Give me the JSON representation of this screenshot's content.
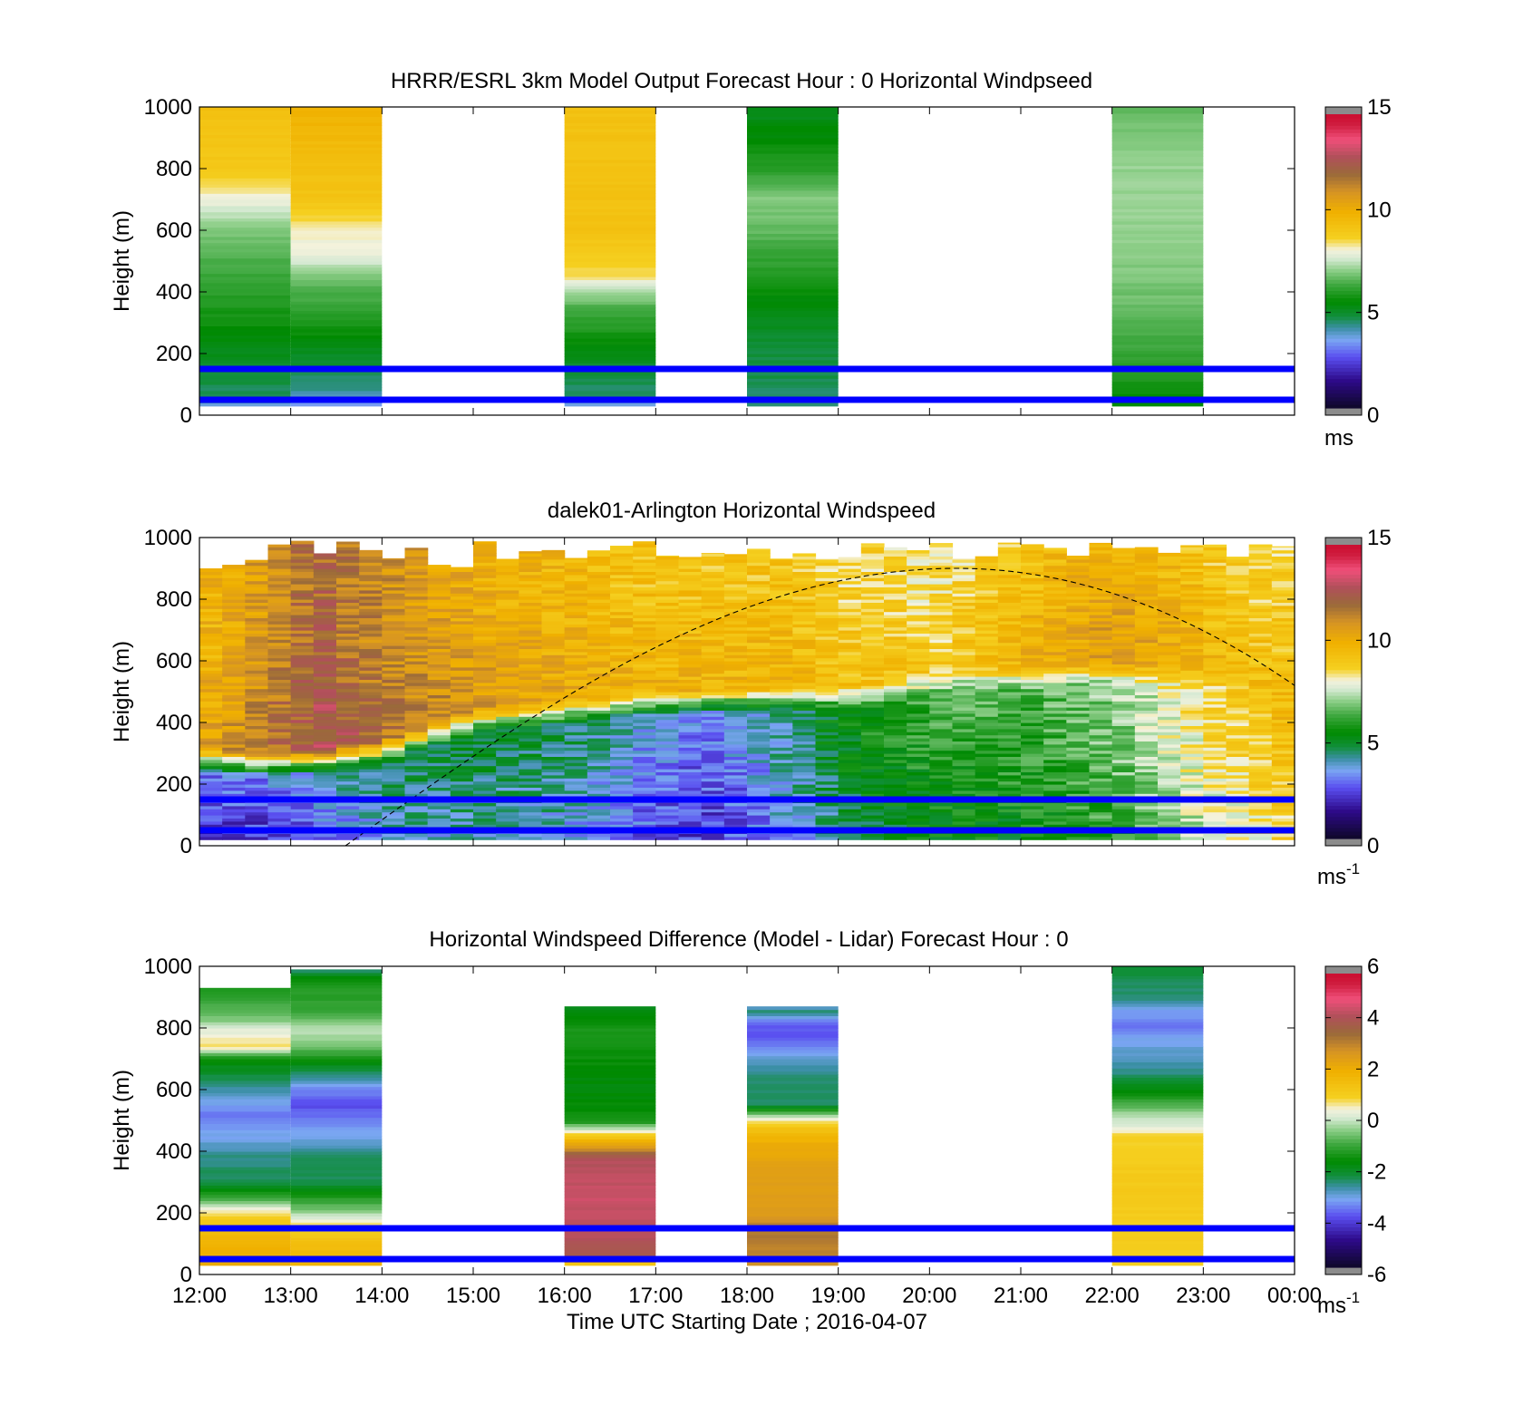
{
  "chart_data": [
    {
      "type": "heatmap",
      "title": "HRRR/ESRL 3km Model Output   Forecast Hour : 0 Horizontal Windpseed",
      "ylabel": "Height (m)",
      "ylim": [
        0,
        1000
      ],
      "yticks": [
        "0",
        "200",
        "400",
        "600",
        "800",
        "1000"
      ],
      "x_hour_range": [
        12,
        24
      ],
      "reference_lines_m": [
        50,
        150
      ],
      "reference_line_color": "#0000ff",
      "colorbar": {
        "min": 0,
        "max": 15,
        "ticks": [
          "0",
          "5",
          "10",
          "15"
        ],
        "unit": "ms"
      },
      "columns": [
        {
          "start_hour": 12,
          "stops": [
            [
              30,
              3.6
            ],
            [
              60,
              4.4
            ],
            [
              150,
              4.8
            ],
            [
              300,
              5.6
            ],
            [
              450,
              6.2
            ],
            [
              600,
              6.9
            ],
            [
              700,
              8.0
            ],
            [
              800,
              9.0
            ],
            [
              1000,
              9.4
            ]
          ]
        },
        {
          "start_hour": 13,
          "stops": [
            [
              30,
              3.4
            ],
            [
              90,
              4.2
            ],
            [
              150,
              4.6
            ],
            [
              250,
              5.4
            ],
            [
              350,
              6.1
            ],
            [
              450,
              6.8
            ],
            [
              490,
              7.5
            ],
            [
              500,
              7.8
            ],
            [
              600,
              8.2
            ],
            [
              700,
              9.2
            ],
            [
              850,
              9.5
            ],
            [
              1000,
              10.0
            ]
          ]
        },
        {
          "start_hour": 16,
          "stops": [
            [
              30,
              3.3
            ],
            [
              60,
              4.3
            ],
            [
              150,
              4.7
            ],
            [
              250,
              5.6
            ],
            [
              350,
              6.4
            ],
            [
              400,
              7.3
            ],
            [
              420,
              7.6
            ],
            [
              450,
              8.5
            ],
            [
              600,
              9.3
            ],
            [
              1000,
              9.3
            ]
          ]
        },
        {
          "start_hour": 18,
          "stops": [
            [
              30,
              4.3
            ],
            [
              150,
              4.6
            ],
            [
              250,
              4.8
            ],
            [
              350,
              5.2
            ],
            [
              450,
              5.8
            ],
            [
              600,
              6.6
            ],
            [
              700,
              7.0
            ],
            [
              800,
              6.0
            ],
            [
              900,
              5.4
            ],
            [
              1000,
              5.0
            ]
          ]
        },
        {
          "start_hour": 22,
          "stops": [
            [
              30,
              5.2
            ],
            [
              150,
              6.0
            ],
            [
              300,
              6.5
            ],
            [
              400,
              6.8
            ],
            [
              500,
              7.0
            ],
            [
              700,
              7.2
            ],
            [
              900,
              7.0
            ],
            [
              1000,
              6.5
            ]
          ]
        }
      ]
    },
    {
      "type": "heatmap",
      "title": "dalek01-Arlington  Horizontal Windspeed",
      "ylabel": "Height (m)",
      "ylim": [
        0,
        1000
      ],
      "yticks": [
        "0",
        "200",
        "400",
        "600",
        "800",
        "1000"
      ],
      "x_hour_range": [
        12,
        24
      ],
      "reference_lines_m": [
        50,
        150
      ],
      "reference_line_color": "#0000ff",
      "colorbar": {
        "min": 0,
        "max": 15,
        "ticks": [
          "0",
          "5",
          "10",
          "15"
        ],
        "unit": "ms",
        "unit_exponent": "-1"
      },
      "time_step_hours": 0.25,
      "low_layer_hours": [
        12,
        12.6,
        13.3,
        14,
        15,
        16,
        17,
        17.5,
        18,
        18.5,
        19,
        19.5,
        20,
        20.5,
        21,
        21.5,
        22,
        22.5,
        23,
        23.5,
        24
      ],
      "low_layer_top_m": [
        270,
        260,
        270,
        300,
        400,
        430,
        460,
        460,
        470,
        470,
        480,
        490,
        520,
        540,
        540,
        550,
        560,
        560,
        550,
        520,
        480
      ],
      "low_layer_speed": [
        2.0,
        2.0,
        2.5,
        3.5,
        3.8,
        3.5,
        2.5,
        2.0,
        2.6,
        3.3,
        4.3,
        4.8,
        5.2,
        5.3,
        5.3,
        5.6,
        6.0,
        6.8,
        7.5,
        8.0,
        8.8
      ],
      "mid_layer_speed": [
        10.5,
        11.5,
        13.0,
        12.0,
        11.0,
        10.5,
        10.0,
        10.0,
        10.0,
        10.0,
        9.5,
        9.5,
        9.0,
        9.5,
        10.0,
        10.5,
        11.0,
        10.5,
        10.0,
        9.5,
        9.5
      ],
      "sunset_curve": {
        "start_hour": 13.6,
        "peak_hour": 20.3,
        "peak_m": 900,
        "end_hour": 24,
        "end_m": 520
      }
    },
    {
      "type": "heatmap",
      "title": "Horizontal Windspeed Difference (Model - Lidar) Forecast Hour : 0",
      "ylabel": "Height (m)",
      "xlabel": "Time UTC  Starting Date ; 2016-04-07",
      "ylim": [
        0,
        1000
      ],
      "yticks": [
        "0",
        "200",
        "400",
        "600",
        "800",
        "1000"
      ],
      "xticks": [
        "12:00",
        "13:00",
        "14:00",
        "15:00",
        "16:00",
        "17:00",
        "18:00",
        "19:00",
        "20:00",
        "21:00",
        "22:00",
        "23:00",
        "00:00"
      ],
      "x_hour_range": [
        12,
        24
      ],
      "reference_lines_m": [
        50,
        150
      ],
      "reference_line_color": "#0000ff",
      "colorbar": {
        "min": -6,
        "max": 6,
        "ticks": [
          "-6",
          "-4",
          "-2",
          "0",
          "2",
          "4",
          "6"
        ],
        "unit": "ms",
        "unit_exponent": "-1"
      },
      "columns": [
        {
          "start_hour": 12,
          "top_m": 930,
          "stops": [
            [
              30,
              2.2
            ],
            [
              100,
              2.0
            ],
            [
              180,
              1.2
            ],
            [
              210,
              0.5
            ],
            [
              250,
              -1.0
            ],
            [
              300,
              -2.4
            ],
            [
              380,
              -2.6
            ],
            [
              450,
              -3.2
            ],
            [
              520,
              -3.6
            ],
            [
              600,
              -2.8
            ],
            [
              700,
              -1.6
            ],
            [
              740,
              0.8
            ],
            [
              800,
              0.2
            ],
            [
              830,
              -0.5
            ],
            [
              880,
              -1.0
            ],
            [
              930,
              -1.3
            ]
          ]
        },
        {
          "start_hour": 13,
          "top_m": 990,
          "stops": [
            [
              30,
              2.0
            ],
            [
              100,
              1.6
            ],
            [
              170,
              0.6
            ],
            [
              210,
              -0.5
            ],
            [
              260,
              -1.5
            ],
            [
              300,
              -2.4
            ],
            [
              380,
              -2.5
            ],
            [
              450,
              -3.2
            ],
            [
              550,
              -4.0
            ],
            [
              600,
              -3.5
            ],
            [
              650,
              -2.5
            ],
            [
              700,
              -1.5
            ],
            [
              730,
              -0.8
            ],
            [
              790,
              0.0
            ],
            [
              850,
              -1.0
            ],
            [
              950,
              -1.4
            ],
            [
              990,
              -2.5
            ]
          ]
        },
        {
          "start_hour": 16,
          "top_m": 870,
          "stops": [
            [
              30,
              0.8
            ],
            [
              60,
              4.0
            ],
            [
              150,
              4.5
            ],
            [
              250,
              4.6
            ],
            [
              380,
              4.3
            ],
            [
              420,
              2.5
            ],
            [
              450,
              1.3
            ],
            [
              500,
              -1.5
            ],
            [
              600,
              -1.8
            ],
            [
              700,
              -1.6
            ],
            [
              800,
              -1.4
            ],
            [
              870,
              -2.0
            ]
          ]
        },
        {
          "start_hour": 18,
          "top_m": 870,
          "stops": [
            [
              30,
              3.0
            ],
            [
              150,
              3.4
            ],
            [
              200,
              2.6
            ],
            [
              300,
              2.6
            ],
            [
              420,
              2.2
            ],
            [
              470,
              1.5
            ],
            [
              500,
              0.8
            ],
            [
              550,
              -2.4
            ],
            [
              650,
              -2.6
            ],
            [
              700,
              -3.0
            ],
            [
              780,
              -4.0
            ],
            [
              820,
              -3.8
            ],
            [
              850,
              -2.5
            ],
            [
              870,
              -3.0
            ]
          ]
        },
        {
          "start_hour": 22,
          "top_m": 1000,
          "stops": [
            [
              30,
              1.0
            ],
            [
              300,
              1.2
            ],
            [
              450,
              1.0
            ],
            [
              470,
              0.4
            ],
            [
              520,
              -0.2
            ],
            [
              560,
              -1.0
            ],
            [
              650,
              -2.6
            ],
            [
              730,
              -3.0
            ],
            [
              800,
              -3.6
            ],
            [
              850,
              -3.4
            ],
            [
              900,
              -2.6
            ],
            [
              1000,
              -2.2
            ]
          ]
        }
      ]
    }
  ]
}
